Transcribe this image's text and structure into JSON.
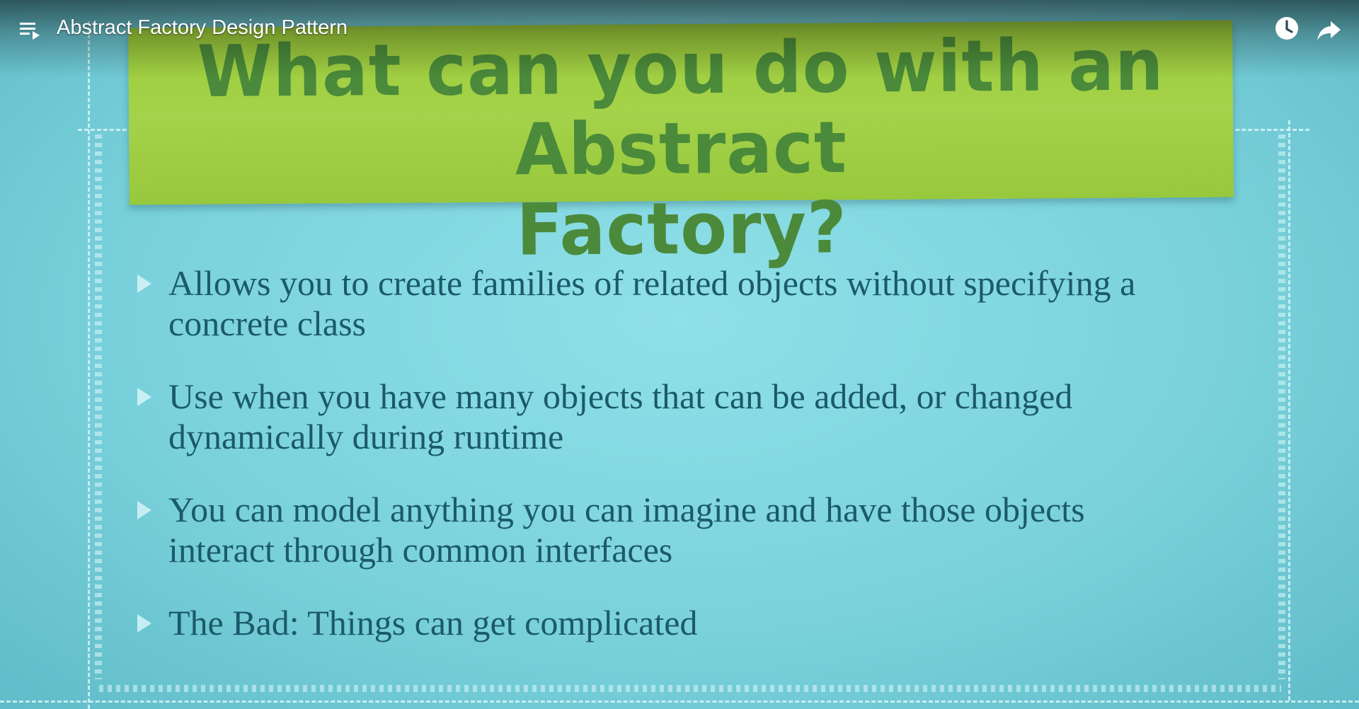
{
  "player": {
    "video_title": "Abstract Factory Design Pattern",
    "icons": {
      "playlist": "playlist-icon",
      "watch_later": "clock-icon",
      "share": "share-arrow-icon"
    }
  },
  "slide": {
    "title_line1": "What can you do with an Abstract",
    "title_line2": "Factory?",
    "bullets": [
      {
        "line1": "Allows you to create families of related objects without specifying a",
        "line2": "concrete class"
      },
      {
        "line1": "Use when you have many objects that can be added, or changed",
        "line2": "dynamically during runtime"
      },
      {
        "line1": "You can model anything you can imagine and have those objects",
        "line2": "interact through common interfaces"
      },
      {
        "line1": "The Bad: Things can get complicated",
        "line2": ""
      }
    ],
    "colors": {
      "background": "#7dd3dc",
      "banner": "#a4d24a",
      "banner_text": "#4a8a3a",
      "body_text": "#1b5a6a"
    }
  }
}
